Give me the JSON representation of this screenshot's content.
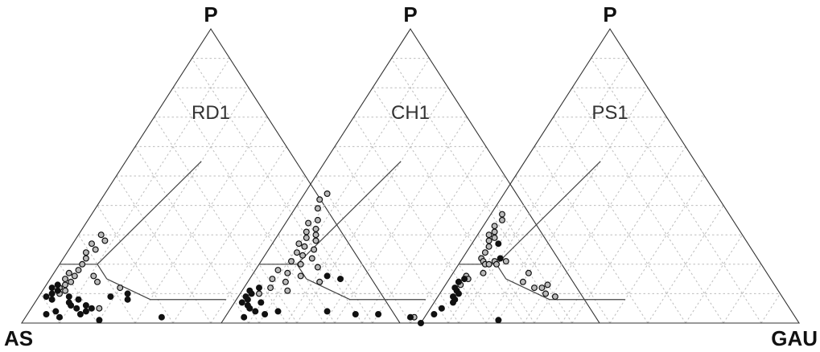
{
  "chart_data": {
    "type": "scatter",
    "subtype": "ternary",
    "vertex_labels": {
      "top": "P",
      "left": "AS",
      "right": "GAU"
    },
    "shared_vertex_labels": {
      "left": "AS",
      "right": "GAU"
    },
    "grid": true,
    "colors": {
      "axis": "#333333",
      "grid": "#bdbdbd",
      "filled": "#111111",
      "open": "#bbbbbb"
    },
    "series_styles": [
      {
        "key": "filled",
        "fill": "#111111"
      },
      {
        "key": "open",
        "fill": "#bbbbbb"
      }
    ],
    "panels": [
      {
        "label": "RD1",
        "top_label": "P",
        "points": [
          {
            "P": 0.3,
            "GAU": 0.06,
            "s": "open"
          },
          {
            "P": 0.28,
            "GAU": 0.08,
            "s": "open"
          },
          {
            "P": 0.27,
            "GAU": 0.05,
            "s": "open"
          },
          {
            "P": 0.25,
            "GAU": 0.07,
            "s": "open"
          },
          {
            "P": 0.24,
            "GAU": 0.05,
            "s": "open"
          },
          {
            "P": 0.22,
            "GAU": 0.06,
            "s": "open"
          },
          {
            "P": 0.2,
            "GAU": 0.06,
            "s": "open"
          },
          {
            "P": 0.18,
            "GAU": 0.06,
            "s": "open"
          },
          {
            "P": 0.17,
            "GAU": 0.04,
            "s": "open"
          },
          {
            "P": 0.16,
            "GAU": 0.06,
            "s": "open"
          },
          {
            "P": 0.15,
            "GAU": 0.04,
            "s": "open"
          },
          {
            "P": 0.14,
            "GAU": 0.06,
            "s": "open"
          },
          {
            "P": 0.13,
            "GAU": 0.05,
            "s": "open"
          },
          {
            "P": 0.12,
            "GAU": 0.04,
            "s": "open"
          },
          {
            "P": 0.11,
            "GAU": 0.06,
            "s": "open"
          },
          {
            "P": 0.1,
            "GAU": 0.05,
            "s": "open"
          },
          {
            "P": 0.16,
            "GAU": 0.11,
            "s": "open"
          },
          {
            "P": 0.14,
            "GAU": 0.13,
            "s": "open"
          },
          {
            "P": 0.12,
            "GAU": 0.2,
            "s": "open"
          },
          {
            "P": 0.05,
            "GAU": 0.18,
            "s": "open"
          },
          {
            "P": 0.13,
            "GAU": 0.03,
            "s": "filled"
          },
          {
            "P": 0.12,
            "GAU": 0.02,
            "s": "filled"
          },
          {
            "P": 0.11,
            "GAU": 0.04,
            "s": "filled"
          },
          {
            "P": 0.1,
            "GAU": 0.03,
            "s": "filled"
          },
          {
            "P": 0.09,
            "GAU": 0.02,
            "s": "filled"
          },
          {
            "P": 0.08,
            "GAU": 0.04,
            "s": "filled"
          },
          {
            "P": 0.09,
            "GAU": 0.08,
            "s": "filled"
          },
          {
            "P": 0.08,
            "GAU": 0.11,
            "s": "filled"
          },
          {
            "P": 0.07,
            "GAU": 0.09,
            "s": "filled"
          },
          {
            "P": 0.06,
            "GAU": 0.1,
            "s": "filled"
          },
          {
            "P": 0.06,
            "GAU": 0.14,
            "s": "filled"
          },
          {
            "P": 0.05,
            "GAU": 0.16,
            "s": "filled"
          },
          {
            "P": 0.04,
            "GAU": 0.15,
            "s": "filled"
          },
          {
            "P": 0.05,
            "GAU": 0.12,
            "s": "filled"
          },
          {
            "P": 0.03,
            "GAU": 0.14,
            "s": "filled"
          },
          {
            "P": 0.09,
            "GAU": 0.19,
            "s": "filled"
          },
          {
            "P": 0.1,
            "GAU": 0.23,
            "s": "filled"
          },
          {
            "P": 0.08,
            "GAU": 0.24,
            "s": "filled"
          },
          {
            "P": 0.04,
            "GAU": 0.07,
            "s": "filled"
          },
          {
            "P": 0.02,
            "GAU": 0.09,
            "s": "filled"
          },
          {
            "P": 0.01,
            "GAU": 0.2,
            "s": "filled"
          },
          {
            "P": 0.03,
            "GAU": 0.05,
            "s": "filled"
          },
          {
            "P": 0.02,
            "GAU": 0.36,
            "s": "filled"
          }
        ]
      },
      {
        "label": "CH1",
        "top_label": "P",
        "points": [
          {
            "P": 0.44,
            "GAU": 0.06,
            "s": "open"
          },
          {
            "P": 0.42,
            "GAU": 0.05,
            "s": "open"
          },
          {
            "P": 0.39,
            "GAU": 0.06,
            "s": "open"
          },
          {
            "P": 0.35,
            "GAU": 0.08,
            "s": "open"
          },
          {
            "P": 0.34,
            "GAU": 0.06,
            "s": "open"
          },
          {
            "P": 0.32,
            "GAU": 0.09,
            "s": "open"
          },
          {
            "P": 0.31,
            "GAU": 0.07,
            "s": "open"
          },
          {
            "P": 0.3,
            "GAU": 0.1,
            "s": "open"
          },
          {
            "P": 0.29,
            "GAU": 0.08,
            "s": "open"
          },
          {
            "P": 0.28,
            "GAU": 0.11,
            "s": "open"
          },
          {
            "P": 0.27,
            "GAU": 0.07,
            "s": "open"
          },
          {
            "P": 0.26,
            "GAU": 0.09,
            "s": "open"
          },
          {
            "P": 0.25,
            "GAU": 0.12,
            "s": "open"
          },
          {
            "P": 0.24,
            "GAU": 0.08,
            "s": "open"
          },
          {
            "P": 0.23,
            "GAU": 0.1,
            "s": "open"
          },
          {
            "P": 0.22,
            "GAU": 0.13,
            "s": "open"
          },
          {
            "P": 0.21,
            "GAU": 0.08,
            "s": "open"
          },
          {
            "P": 0.2,
            "GAU": 0.11,
            "s": "open"
          },
          {
            "P": 0.19,
            "GAU": 0.16,
            "s": "open"
          },
          {
            "P": 0.18,
            "GAU": 0.06,
            "s": "open"
          },
          {
            "P": 0.17,
            "GAU": 0.09,
            "s": "open"
          },
          {
            "P": 0.16,
            "GAU": 0.13,
            "s": "open"
          },
          {
            "P": 0.15,
            "GAU": 0.06,
            "s": "open"
          },
          {
            "P": 0.14,
            "GAU": 0.1,
            "s": "open"
          },
          {
            "P": 0.14,
            "GAU": 0.19,
            "s": "open"
          },
          {
            "P": 0.12,
            "GAU": 0.07,
            "s": "open"
          },
          {
            "P": 0.11,
            "GAU": 0.12,
            "s": "open"
          },
          {
            "P": 0.1,
            "GAU": 0.05,
            "s": "open"
          },
          {
            "P": 0.02,
            "GAU": 0.5,
            "s": "open"
          },
          {
            "P": 0.16,
            "GAU": 0.2,
            "s": "filled"
          },
          {
            "P": 0.15,
            "GAU": 0.24,
            "s": "filled"
          },
          {
            "P": 0.12,
            "GAU": 0.04,
            "s": "filled"
          },
          {
            "P": 0.11,
            "GAU": 0.02,
            "s": "filled"
          },
          {
            "P": 0.1,
            "GAU": 0.03,
            "s": "filled"
          },
          {
            "P": 0.09,
            "GAU": 0.02,
            "s": "filled"
          },
          {
            "P": 0.08,
            "GAU": 0.03,
            "s": "filled"
          },
          {
            "P": 0.07,
            "GAU": 0.02,
            "s": "filled"
          },
          {
            "P": 0.06,
            "GAU": 0.04,
            "s": "filled"
          },
          {
            "P": 0.07,
            "GAU": 0.07,
            "s": "filled"
          },
          {
            "P": 0.05,
            "GAU": 0.05,
            "s": "filled"
          },
          {
            "P": 0.04,
            "GAU": 0.07,
            "s": "filled"
          },
          {
            "P": 0.04,
            "GAU": 0.13,
            "s": "filled"
          },
          {
            "P": 0.03,
            "GAU": 0.1,
            "s": "filled"
          },
          {
            "P": 0.02,
            "GAU": 0.05,
            "s": "filled"
          },
          {
            "P": 0.04,
            "GAU": 0.26,
            "s": "filled"
          },
          {
            "P": 0.03,
            "GAU": 0.34,
            "s": "filled"
          },
          {
            "P": 0.03,
            "GAU": 0.4,
            "s": "filled"
          },
          {
            "P": 0.02,
            "GAU": 0.49,
            "s": "filled"
          }
        ]
      },
      {
        "label": "PS1",
        "top_label": "P",
        "points": [
          {
            "P": 0.37,
            "GAU": 0.03,
            "s": "open"
          },
          {
            "P": 0.35,
            "GAU": 0.04,
            "s": "open"
          },
          {
            "P": 0.33,
            "GAU": 0.03,
            "s": "open"
          },
          {
            "P": 0.31,
            "GAU": 0.04,
            "s": "open"
          },
          {
            "P": 0.3,
            "GAU": 0.03,
            "s": "open"
          },
          {
            "P": 0.29,
            "GAU": 0.05,
            "s": "open"
          },
          {
            "P": 0.28,
            "GAU": 0.04,
            "s": "open"
          },
          {
            "P": 0.26,
            "GAU": 0.05,
            "s": "open"
          },
          {
            "P": 0.24,
            "GAU": 0.05,
            "s": "open"
          },
          {
            "P": 0.22,
            "GAU": 0.05,
            "s": "open"
          },
          {
            "P": 0.21,
            "GAU": 0.06,
            "s": "open"
          },
          {
            "P": 0.2,
            "GAU": 0.07,
            "s": "open"
          },
          {
            "P": 0.2,
            "GAU": 0.08,
            "s": "open"
          },
          {
            "P": 0.21,
            "GAU": 0.09,
            "s": "open"
          },
          {
            "P": 0.2,
            "GAU": 0.1,
            "s": "open"
          },
          {
            "P": 0.21,
            "GAU": 0.12,
            "s": "open"
          },
          {
            "P": 0.17,
            "GAU": 0.08,
            "s": "open"
          },
          {
            "P": 0.16,
            "GAU": 0.04,
            "s": "open"
          },
          {
            "P": 0.15,
            "GAU": 0.05,
            "s": "open"
          },
          {
            "P": 0.14,
            "GAU": 0.03,
            "s": "open"
          },
          {
            "P": 0.13,
            "GAU": 0.04,
            "s": "open"
          },
          {
            "P": 0.17,
            "GAU": 0.2,
            "s": "open"
          },
          {
            "P": 0.14,
            "GAU": 0.2,
            "s": "open"
          },
          {
            "P": 0.12,
            "GAU": 0.24,
            "s": "open"
          },
          {
            "P": 0.12,
            "GAU": 0.26,
            "s": "open"
          },
          {
            "P": 0.1,
            "GAU": 0.28,
            "s": "open"
          },
          {
            "P": 0.09,
            "GAU": 0.31,
            "s": "open"
          },
          {
            "P": 0.13,
            "GAU": 0.27,
            "s": "open"
          },
          {
            "P": 0.27,
            "GAU": 0.07,
            "s": "filled"
          },
          {
            "P": 0.22,
            "GAU": 0.1,
            "s": "filled"
          },
          {
            "P": 0.15,
            "GAU": 0.04,
            "s": "filled"
          },
          {
            "P": 0.14,
            "GAU": 0.03,
            "s": "filled"
          },
          {
            "P": 0.12,
            "GAU": 0.03,
            "s": "filled"
          },
          {
            "P": 0.11,
            "GAU": 0.04,
            "s": "filled"
          },
          {
            "P": 0.1,
            "GAU": 0.05,
            "s": "filled"
          },
          {
            "P": 0.09,
            "GAU": 0.04,
            "s": "filled"
          },
          {
            "P": 0.08,
            "GAU": 0.05,
            "s": "filled"
          },
          {
            "P": 0.07,
            "GAU": 0.05,
            "s": "filled"
          },
          {
            "P": 0.05,
            "GAU": 0.03,
            "s": "filled"
          },
          {
            "P": 0.03,
            "GAU": 0.02,
            "s": "filled"
          },
          {
            "P": 0.0,
            "GAU": 0.0,
            "s": "filled"
          },
          {
            "P": 0.01,
            "GAU": 0.2,
            "s": "filled"
          }
        ]
      }
    ]
  }
}
